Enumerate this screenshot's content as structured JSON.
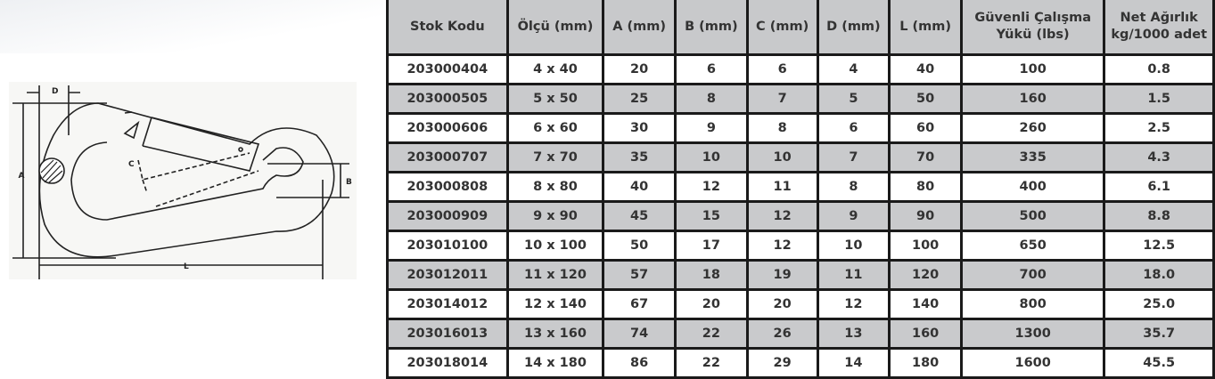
{
  "diagram": {
    "labels": {
      "a": "A",
      "b": "B",
      "c": "C",
      "d": "D",
      "l": "L"
    }
  },
  "table": {
    "headers": [
      "Stok Kodu",
      "Ölçü (mm)",
      "A (mm)",
      "B (mm)",
      "C (mm)",
      "D (mm)",
      "L (mm)",
      "Güvenli Çalışma Yükü (lbs)",
      "Net Ağırlık kg/1000 adet"
    ],
    "rows": [
      [
        "203000404",
        "4 x 40",
        "20",
        "6",
        "6",
        "4",
        "40",
        "100",
        "0.8"
      ],
      [
        "203000505",
        "5 x 50",
        "25",
        "8",
        "7",
        "5",
        "50",
        "160",
        "1.5"
      ],
      [
        "203000606",
        "6 x 60",
        "30",
        "9",
        "8",
        "6",
        "60",
        "260",
        "2.5"
      ],
      [
        "203000707",
        "7 x 70",
        "35",
        "10",
        "10",
        "7",
        "70",
        "335",
        "4.3"
      ],
      [
        "203000808",
        "8 x 80",
        "40",
        "12",
        "11",
        "8",
        "80",
        "400",
        "6.1"
      ],
      [
        "203000909",
        "9 x 90",
        "45",
        "15",
        "12",
        "9",
        "90",
        "500",
        "8.8"
      ],
      [
        "203010100",
        "10 x 100",
        "50",
        "17",
        "12",
        "10",
        "100",
        "650",
        "12.5"
      ],
      [
        "203012011",
        "11 x 120",
        "57",
        "18",
        "19",
        "11",
        "120",
        "700",
        "18.0"
      ],
      [
        "203014012",
        "12 x 140",
        "67",
        "20",
        "20",
        "12",
        "140",
        "800",
        "25.0"
      ],
      [
        "203016013",
        "13 x 160",
        "74",
        "22",
        "26",
        "13",
        "160",
        "1300",
        "35.7"
      ],
      [
        "203018014",
        "14 x 180",
        "86",
        "22",
        "29",
        "14",
        "180",
        "1600",
        "45.5"
      ]
    ]
  }
}
